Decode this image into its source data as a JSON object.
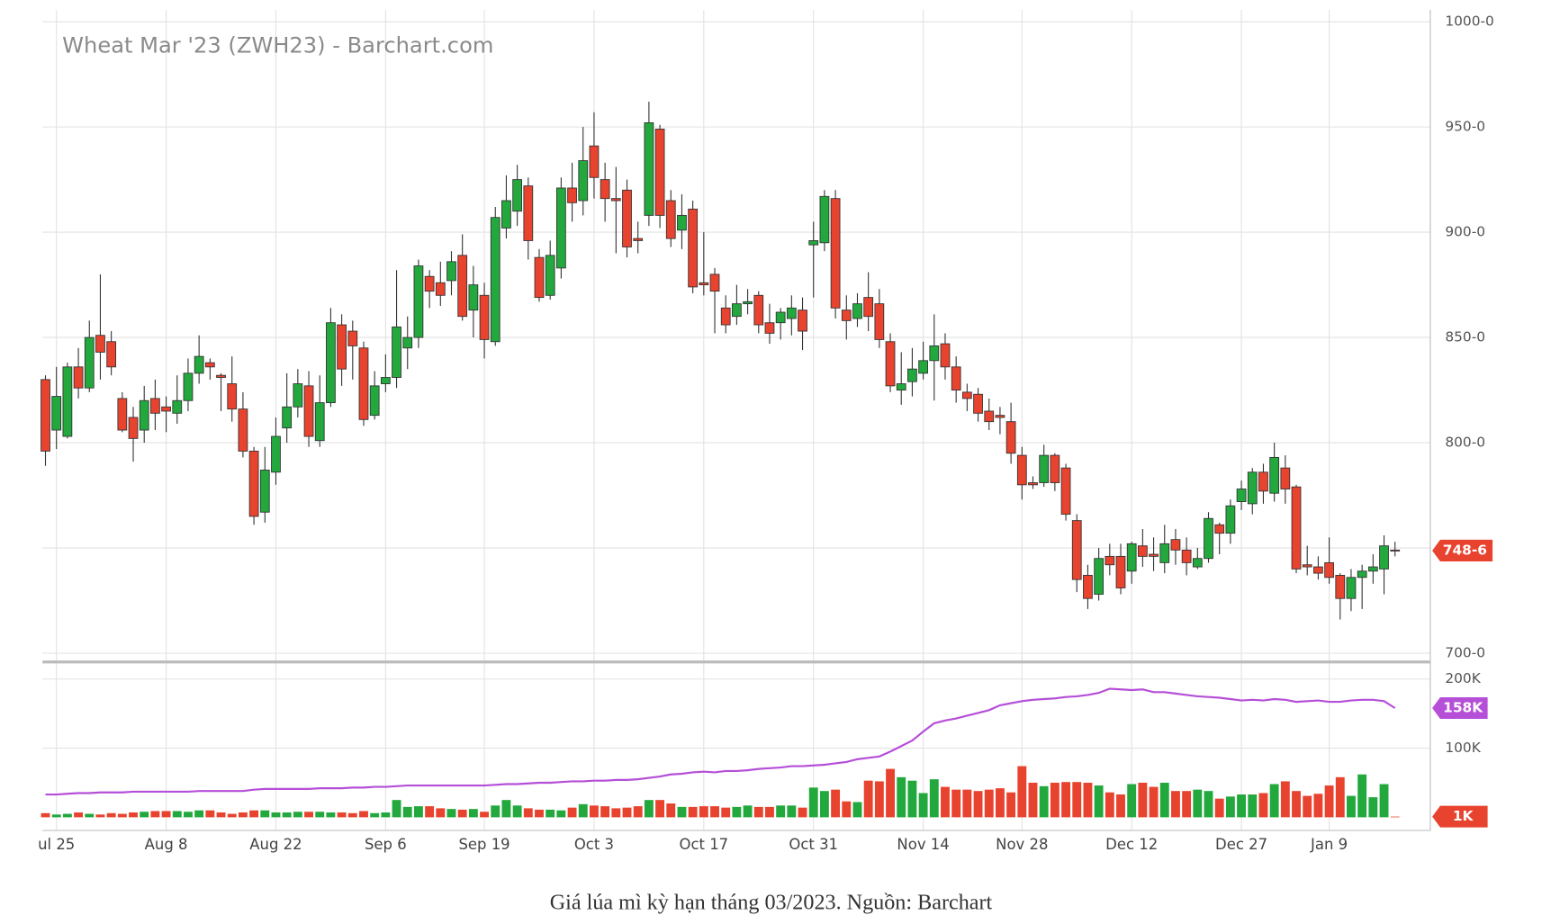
{
  "caption": "Giá lúa mì kỳ hạn tháng 03/2023. Nguồn: Barchart",
  "chart_data": [
    {
      "type": "candlestick",
      "title": "Wheat Mar '23 (ZWH23) - Barchart.com",
      "categories": [
        null,
        "ul 25",
        null,
        null,
        null,
        null,
        null,
        null,
        null,
        null,
        null,
        "Aug 8",
        null,
        null,
        null,
        null,
        null,
        null,
        null,
        null,
        null,
        "Aug 22",
        null,
        null,
        null,
        null,
        null,
        null,
        null,
        null,
        null,
        "Sep 6",
        null,
        null,
        null,
        null,
        null,
        null,
        null,
        null,
        "Sep 19",
        null,
        null,
        null,
        null,
        null,
        null,
        null,
        null,
        null,
        "Oct 3",
        null,
        null,
        null,
        null,
        null,
        null,
        null,
        null,
        null,
        "Oct 17",
        null,
        null,
        null,
        null,
        null,
        null,
        null,
        null,
        null,
        "Oct 31",
        null,
        null,
        null,
        null,
        null,
        null,
        null,
        null,
        null,
        "Nov 14",
        null,
        null,
        null,
        null,
        null,
        null,
        null,
        null,
        "Nov 28",
        null,
        null,
        null,
        null,
        null,
        null,
        null,
        null,
        null,
        "Dec 12",
        null,
        null,
        null,
        null,
        null,
        null,
        null,
        null,
        null,
        "Dec 27",
        null,
        null,
        null,
        null,
        null,
        null,
        null,
        "Jan 9",
        null,
        null,
        null,
        null,
        null,
        null
      ],
      "open": [
        830,
        806,
        803,
        836,
        826,
        851,
        848,
        821,
        812,
        806,
        821,
        817,
        814,
        820,
        833,
        838,
        832,
        828,
        816,
        796,
        767,
        786,
        807,
        817,
        827,
        801,
        819,
        856,
        853,
        845,
        813,
        828,
        831,
        845,
        850,
        879,
        876,
        877,
        889,
        863,
        870,
        848,
        902,
        910,
        922,
        888,
        870,
        883,
        921,
        915,
        941,
        925,
        916,
        920,
        897,
        908,
        949,
        915,
        901,
        911,
        876,
        880,
        864,
        860,
        866,
        870,
        857,
        857,
        859,
        863,
        894,
        895,
        916,
        863,
        859,
        869,
        866,
        848,
        825,
        829,
        833,
        839,
        847,
        836,
        824,
        823,
        815,
        813,
        810,
        794,
        781,
        781,
        794,
        788,
        763,
        737,
        728,
        746,
        746,
        739,
        751,
        747,
        743,
        754,
        749,
        741,
        745,
        761,
        757,
        772,
        771,
        786,
        776,
        788,
        779,
        742,
        741,
        743,
        737,
        726,
        736,
        739,
        740,
        749
      ],
      "high": [
        832,
        836,
        838,
        845,
        858,
        880,
        853,
        824,
        817,
        827,
        830,
        822,
        832,
        840,
        851,
        840,
        833,
        841,
        824,
        798,
        798,
        812,
        833,
        835,
        834,
        832,
        864,
        861,
        858,
        848,
        834,
        842,
        882,
        860,
        887,
        882,
        886,
        891,
        899,
        884,
        876,
        912,
        927,
        932,
        926,
        892,
        896,
        926,
        933,
        950,
        957,
        933,
        931,
        925,
        905,
        962,
        951,
        920,
        918,
        915,
        900,
        883,
        870,
        875,
        873,
        872,
        866,
        864,
        870,
        869,
        905,
        920,
        920,
        870,
        871,
        881,
        873,
        852,
        843,
        845,
        848,
        861,
        852,
        841,
        828,
        826,
        821,
        817,
        819,
        798,
        784,
        799,
        795,
        790,
        766,
        742,
        750,
        752,
        752,
        753,
        759,
        755,
        761,
        759,
        755,
        750,
        767,
        762,
        773,
        782,
        788,
        790,
        800,
        794,
        780,
        751,
        746,
        755,
        738,
        740,
        742,
        747,
        756,
        753
      ],
      "low": [
        789,
        797,
        802,
        821,
        824,
        830,
        832,
        805,
        791,
        800,
        806,
        805,
        809,
        815,
        828,
        830,
        815,
        810,
        793,
        761,
        762,
        780,
        800,
        812,
        798,
        798,
        817,
        827,
        830,
        808,
        811,
        824,
        826,
        835,
        845,
        864,
        865,
        870,
        858,
        850,
        840,
        846,
        897,
        903,
        887,
        867,
        868,
        878,
        905,
        908,
        916,
        905,
        890,
        888,
        890,
        903,
        902,
        893,
        892,
        871,
        870,
        852,
        852,
        856,
        861,
        852,
        847,
        849,
        851,
        844,
        869,
        891,
        859,
        849,
        855,
        853,
        845,
        824,
        818,
        822,
        830,
        820,
        830,
        819,
        815,
        810,
        806,
        804,
        790,
        773,
        778,
        779,
        777,
        763,
        729,
        721,
        725,
        737,
        728,
        733,
        741,
        739,
        738,
        742,
        737,
        740,
        743,
        747,
        752,
        768,
        766,
        771,
        772,
        771,
        738,
        737,
        735,
        733,
        716,
        720,
        721,
        733,
        728,
        746
      ],
      "close": [
        796,
        822,
        836,
        826,
        850,
        843,
        836,
        806,
        802,
        820,
        814,
        815,
        820,
        833,
        841,
        836,
        831,
        816,
        796,
        765,
        787,
        803,
        817,
        828,
        803,
        819,
        857,
        835,
        846,
        811,
        827,
        831,
        855,
        850,
        884,
        872,
        870,
        886,
        860,
        875,
        849,
        907,
        915,
        925,
        896,
        869,
        889,
        921,
        914,
        934,
        926,
        916,
        915,
        893,
        896,
        952,
        908,
        897,
        908,
        874,
        875,
        872,
        856,
        866,
        867,
        856,
        852,
        862,
        864,
        853,
        896,
        917,
        864,
        858,
        866,
        860,
        849,
        827,
        828,
        835,
        839,
        846,
        836,
        825,
        821,
        814,
        810,
        812,
        795,
        780,
        780,
        794,
        781,
        766,
        735,
        726,
        745,
        742,
        731,
        752,
        746,
        746,
        752,
        749,
        743,
        745,
        764,
        757,
        770,
        778,
        786,
        777,
        793,
        778,
        740,
        741,
        738,
        736,
        726,
        736,
        739,
        741,
        751,
        748.75
      ],
      "up_color": "#22a83d",
      "down_color": "#e8432e",
      "ylim": [
        697.7,
        1003.3
      ],
      "yticks": [
        {
          "value": 700,
          "label": "700-0"
        },
        {
          "value": 750,
          "label": "750-0"
        },
        {
          "value": 800,
          "label": "800-0"
        },
        {
          "value": 850,
          "label": "850-0"
        },
        {
          "value": 900,
          "label": "900-0"
        },
        {
          "value": 950,
          "label": "950-0"
        },
        {
          "value": 1000,
          "label": "1000-0"
        }
      ],
      "grid": true,
      "last_price": {
        "value": 748.75,
        "label": "748-6"
      }
    },
    {
      "type": "volume",
      "values": [
        6000,
        4000,
        5000,
        7000,
        5000,
        4000,
        6000,
        5000,
        7000,
        8000,
        9000,
        9000,
        9000,
        8000,
        10000,
        10000,
        7000,
        5000,
        7000,
        10000,
        10000,
        7000,
        7000,
        8000,
        8000,
        8000,
        7000,
        7000,
        6000,
        9000,
        6000,
        7000,
        25000,
        15000,
        16000,
        16000,
        13000,
        12000,
        11000,
        12000,
        8000,
        17000,
        25000,
        17000,
        13000,
        11000,
        11000,
        10000,
        14000,
        19000,
        17000,
        16000,
        13000,
        14000,
        16000,
        25000,
        25000,
        20000,
        15000,
        15000,
        16000,
        16000,
        14000,
        15000,
        17000,
        15000,
        15000,
        17000,
        17000,
        14000,
        43000,
        38000,
        40000,
        23000,
        22000,
        53000,
        52000,
        70000,
        58000,
        53000,
        35000,
        55000,
        44000,
        40000,
        40000,
        38000,
        40000,
        42000,
        36000,
        74000,
        50000,
        45000,
        50000,
        51000,
        51000,
        50000,
        46000,
        36000,
        33000,
        48000,
        50000,
        44000,
        50000,
        38000,
        38000,
        40000,
        38000,
        27000,
        30000,
        33000,
        33000,
        35000,
        48000,
        52000,
        38000,
        31000,
        34000,
        46000,
        58000,
        31000,
        62000,
        29000,
        48000,
        1000
      ],
      "line_values": [
        33000,
        33000,
        34000,
        35000,
        35000,
        36000,
        36000,
        36000,
        37000,
        37000,
        37000,
        37000,
        37000,
        37000,
        38000,
        38000,
        38000,
        38000,
        38000,
        40000,
        41000,
        41000,
        41000,
        41000,
        41000,
        42000,
        42000,
        42000,
        43000,
        43000,
        44000,
        44000,
        45000,
        46000,
        46000,
        46000,
        46000,
        46000,
        46000,
        46000,
        46000,
        47000,
        48000,
        48000,
        49000,
        50000,
        50000,
        51000,
        52000,
        52000,
        53000,
        53000,
        54000,
        54000,
        55000,
        57000,
        59000,
        62000,
        63000,
        65000,
        66000,
        65000,
        67000,
        67000,
        68000,
        70000,
        71000,
        72000,
        74000,
        74000,
        75000,
        76000,
        78000,
        80000,
        84000,
        86000,
        88000,
        95000,
        103000,
        111000,
        124000,
        136000,
        140000,
        143000,
        147000,
        151000,
        155000,
        162000,
        165000,
        168000,
        170000,
        171000,
        172000,
        174000,
        175000,
        177000,
        180000,
        186000,
        185000,
        184000,
        185000,
        181000,
        181000,
        179000,
        177000,
        175000,
        174000,
        173000,
        171000,
        169000,
        170000,
        169000,
        171000,
        170000,
        167000,
        168000,
        169000,
        167000,
        167000,
        169000,
        170000,
        170000,
        168000,
        158000
      ],
      "line_color": "#b54fd8",
      "ylim": [
        -19000,
        219000
      ],
      "yticks": [
        {
          "value": 100000,
          "label": "100K"
        },
        {
          "value": 200000,
          "label": "200K"
        }
      ],
      "grid": true,
      "line_badge": {
        "value": 158000,
        "label": "158K"
      },
      "volume_badge": {
        "value": 1000,
        "label": "1K"
      }
    }
  ]
}
